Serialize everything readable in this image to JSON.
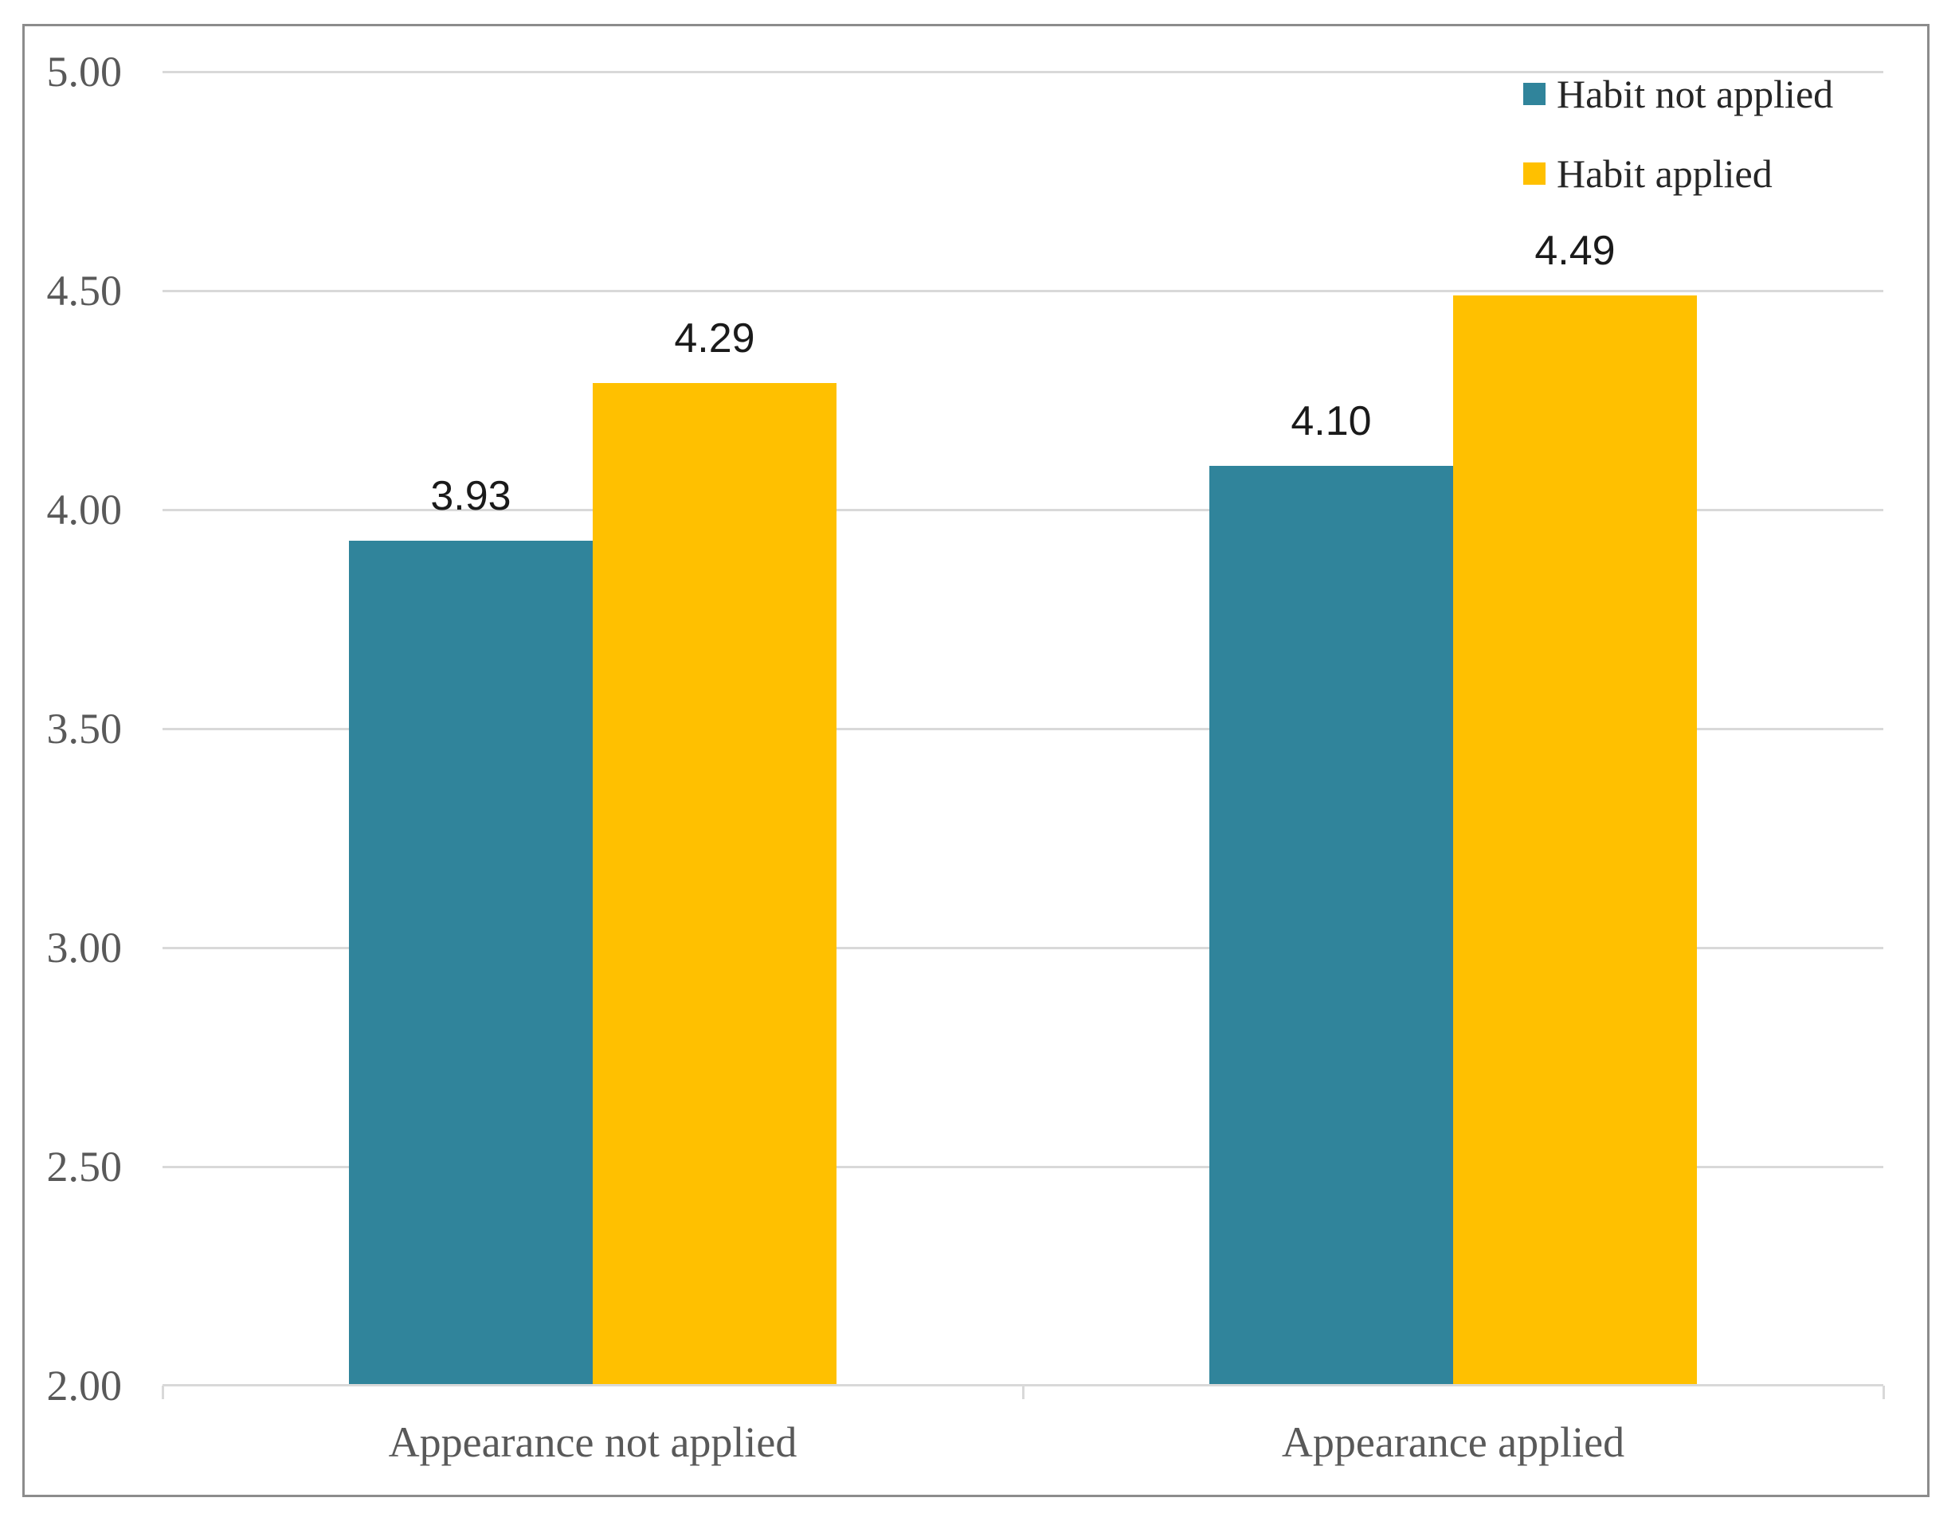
{
  "figure": {
    "background": "#FFFFFF",
    "border_color": "#8C8C8C"
  },
  "chart_data": {
    "type": "bar",
    "title": "",
    "xlabel": "",
    "ylabel": "",
    "categories": [
      "Appearance not applied",
      "Appearance applied"
    ],
    "series": [
      {
        "name": "Habit not applied",
        "color": "#30849B",
        "values": [
          3.93,
          4.1
        ],
        "data_labels": [
          "3.93",
          "4.10"
        ]
      },
      {
        "name": "Habit applied",
        "color": "#FFC000",
        "values": [
          4.29,
          4.49
        ],
        "data_labels": [
          "4.29",
          "4.49"
        ]
      }
    ],
    "ylim": [
      2.0,
      5.0
    ],
    "ytick_labels": [
      "5.00",
      "4.50",
      "4.00",
      "3.50",
      "3.00",
      "2.50",
      "2.00"
    ],
    "grid": "horizontal",
    "gridline_color": "#D9D9D9",
    "axis_line_color": "#D9D9D9",
    "tick_label_color": "#595959",
    "data_label_color": "#1A1A1A",
    "legend_position": "top-right",
    "legend_labels": [
      "Habit not applied",
      "Habit applied"
    ]
  }
}
